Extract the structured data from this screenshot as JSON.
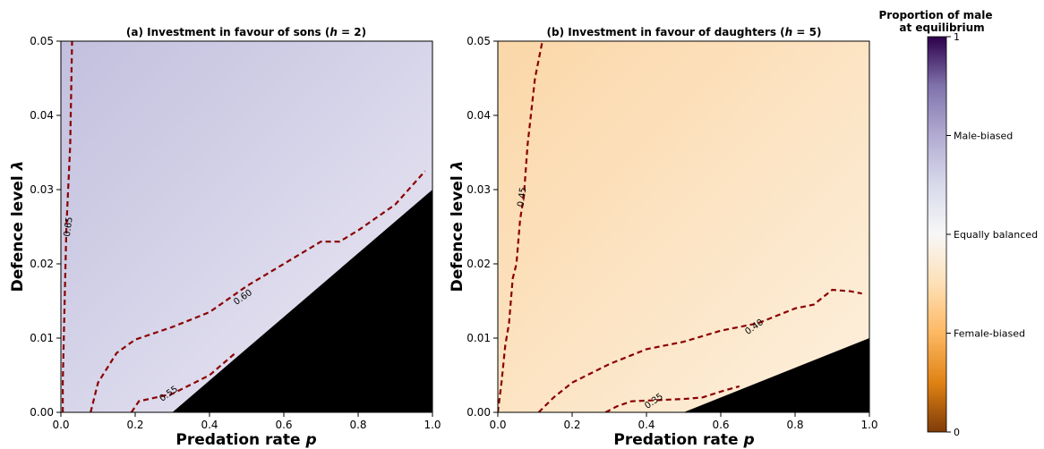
{
  "chart_data": [
    {
      "type": "heatmap",
      "title": "(a) Investment in favour of sons (",
      "title_param": "h",
      "title_value": " = 2)",
      "xlabel": "Predation rate ",
      "xlabel_symbol": "p",
      "ylabel": "Defence level ",
      "ylabel_symbol": "λ",
      "xlim": [
        0,
        1.0
      ],
      "ylim": [
        0,
        0.05
      ],
      "xticks": [
        "0.0",
        "0.2",
        "0.4",
        "0.6",
        "0.8",
        "1.0"
      ],
      "yticks": [
        "0.00",
        "0.01",
        "0.02",
        "0.03",
        "0.04",
        "0.05"
      ],
      "grid": false,
      "color_low": "#eceaf4",
      "color_high": "#c2c0de",
      "infeasible_region": [
        [
          0.3,
          0
        ],
        [
          1.0,
          0.03
        ],
        [
          1.0,
          0
        ]
      ],
      "contours": [
        {
          "label": "0.65",
          "label_at": [
            0.02,
            0.025
          ],
          "points": [
            [
              0.005,
              0
            ],
            [
              0.005,
              0.004
            ],
            [
              0.01,
              0.015
            ],
            [
              0.015,
              0.025
            ],
            [
              0.025,
              0.036
            ],
            [
              0.03,
              0.05
            ]
          ]
        },
        {
          "label": "0.60",
          "label_at": [
            0.49,
            0.0155
          ],
          "points": [
            [
              0.08,
              0
            ],
            [
              0.1,
              0.004
            ],
            [
              0.15,
              0.008
            ],
            [
              0.2,
              0.0098
            ],
            [
              0.3,
              0.0115
            ],
            [
              0.4,
              0.0135
            ],
            [
              0.5,
              0.017
            ],
            [
              0.6,
              0.02
            ],
            [
              0.7,
              0.023
            ],
            [
              0.75,
              0.023
            ],
            [
              0.8,
              0.0245
            ],
            [
              0.9,
              0.028
            ],
            [
              0.98,
              0.0325
            ]
          ]
        },
        {
          "label": "0.55",
          "label_at": [
            0.29,
            0.0025
          ],
          "points": [
            [
              0.19,
              0
            ],
            [
              0.21,
              0.0015
            ],
            [
              0.3,
              0.0025
            ],
            [
              0.4,
              0.005
            ],
            [
              0.47,
              0.008
            ]
          ]
        }
      ]
    },
    {
      "type": "heatmap",
      "title": "(b) Investment in favour of daughters (",
      "title_param": "h",
      "title_value": " = 5)",
      "xlabel": "Predation rate ",
      "xlabel_symbol": "p",
      "ylabel": "Defence level ",
      "ylabel_symbol": "λ",
      "xlim": [
        0,
        1.0
      ],
      "ylim": [
        0,
        0.05
      ],
      "xticks": [
        "0.0",
        "0.2",
        "0.4",
        "0.6",
        "0.8",
        "1.0"
      ],
      "yticks": [
        "0.00",
        "0.01",
        "0.02",
        "0.03",
        "0.04",
        "0.05"
      ],
      "grid": false,
      "color_low": "#fdf0de",
      "color_high": "#fbd7a8",
      "infeasible_region": [
        [
          0.5,
          0
        ],
        [
          1.0,
          0.01
        ],
        [
          1.0,
          0
        ]
      ],
      "contours": [
        {
          "label": "0.45",
          "label_at": [
            0.065,
            0.029
          ],
          "points": [
            [
              0.0,
              0
            ],
            [
              0.01,
              0.004
            ],
            [
              0.02,
              0.009
            ],
            [
              0.03,
              0.012
            ],
            [
              0.04,
              0.018
            ],
            [
              0.05,
              0.02
            ],
            [
              0.06,
              0.026
            ],
            [
              0.07,
              0.029
            ],
            [
              0.08,
              0.036
            ],
            [
              0.1,
              0.045
            ],
            [
              0.12,
              0.05
            ]
          ]
        },
        {
          "label": "0.40",
          "label_at": [
            0.69,
            0.0115
          ],
          "points": [
            [
              0.11,
              0
            ],
            [
              0.15,
              0.002
            ],
            [
              0.2,
              0.004
            ],
            [
              0.3,
              0.0065
            ],
            [
              0.4,
              0.0085
            ],
            [
              0.5,
              0.0095
            ],
            [
              0.6,
              0.011
            ],
            [
              0.7,
              0.012
            ],
            [
              0.8,
              0.014
            ],
            [
              0.85,
              0.0145
            ],
            [
              0.9,
              0.0165
            ],
            [
              0.95,
              0.0163
            ],
            [
              0.98,
              0.016
            ]
          ]
        },
        {
          "label": "0.35",
          "label_at": [
            0.42,
            0.0015
          ],
          "points": [
            [
              0.29,
              0
            ],
            [
              0.32,
              0.0008
            ],
            [
              0.36,
              0.0015
            ],
            [
              0.5,
              0.0018
            ],
            [
              0.55,
              0.002
            ],
            [
              0.6,
              0.0028
            ],
            [
              0.65,
              0.0035
            ]
          ]
        }
      ]
    }
  ],
  "colorbar": {
    "title_line1": "Proportion of male",
    "title_line2": "at equilibrium",
    "range": [
      0,
      1
    ],
    "stops": [
      "#7f3b08",
      "#e08214",
      "#fdb863",
      "#fee0b6",
      "#f7f7f7",
      "#d8daeb",
      "#b2abd2",
      "#8073ac",
      "#2d004b"
    ],
    "tick_labels": [
      "1",
      "Male-biased",
      "Equally balanced",
      "Female-biased",
      "0"
    ],
    "tick_values": [
      1,
      0.75,
      0.5,
      0.25,
      0
    ]
  },
  "colors": {
    "contour": "#8b0000",
    "infeasible": "#000000"
  }
}
